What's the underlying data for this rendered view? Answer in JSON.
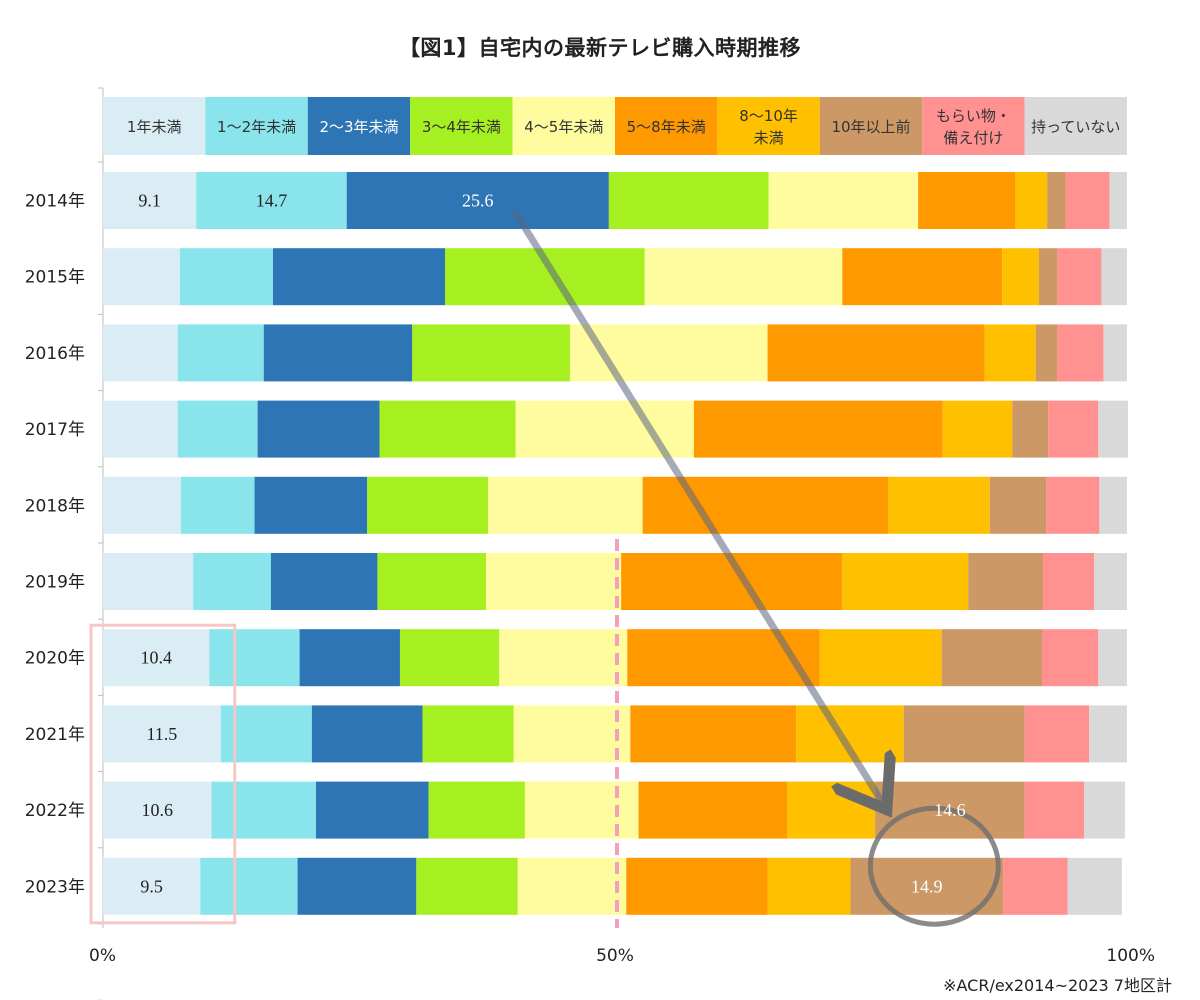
{
  "title": "【図1】自宅内の最新テレビ購入時期推移",
  "source_note": "※ACR/ex2014~2023 7地区計",
  "colors": {
    "1年未満": "#daedf4",
    "1～2年未満": "#89e4ec",
    "2～3年未満": "#2e75b6",
    "3～4年未満": "#a6ef21",
    "4～5年未満": "#fffc9f",
    "5～8年未満": "#ff9900",
    "8～10年未満": "#ffc000",
    "10年以上前": "#cc9966",
    "もらい物・備え付け": "#ff9191",
    "持っていない": "#d9d9d9"
  },
  "chart_data": {
    "type": "bar",
    "orientation": "horizontal",
    "stacked": true,
    "percent": true,
    "xlim": [
      0,
      100
    ],
    "x_tick_labels": [
      "0%",
      "50%",
      "100%"
    ],
    "x_tick_values": [
      0,
      50,
      100
    ],
    "categories": [
      "2014年",
      "2015年",
      "2016年",
      "2017年",
      "2018年",
      "2019年",
      "2020年",
      "2021年",
      "2022年",
      "2023年"
    ],
    "series": [
      {
        "name": "1年未満",
        "values": [
          9.1,
          7.5,
          7.3,
          7.3,
          7.6,
          8.8,
          10.4,
          11.5,
          10.6,
          9.5
        ]
      },
      {
        "name": "1～2年未満",
        "values": [
          14.7,
          9.1,
          8.4,
          7.8,
          7.2,
          7.6,
          8.8,
          8.9,
          10.2,
          9.5
        ]
      },
      {
        "name": "2～3年未満",
        "values": [
          25.6,
          16.8,
          14.5,
          11.9,
          11.0,
          10.4,
          9.8,
          10.8,
          11.0,
          11.6
        ]
      },
      {
        "name": "3～4年未満",
        "values": [
          15.6,
          19.5,
          15.4,
          13.3,
          11.8,
          10.6,
          9.7,
          8.9,
          9.4,
          9.9
        ]
      },
      {
        "name": "4～5年未満",
        "values": [
          14.6,
          19.3,
          19.3,
          17.4,
          15.1,
          13.2,
          12.5,
          11.4,
          11.1,
          10.6
        ]
      },
      {
        "name": "5～8年未満",
        "values": [
          9.5,
          15.6,
          21.2,
          24.3,
          24.0,
          21.6,
          18.8,
          16.2,
          14.5,
          13.8
        ]
      },
      {
        "name": "8～10年未満",
        "values": [
          3.1,
          3.6,
          5.0,
          6.8,
          9.9,
          12.3,
          11.9,
          10.5,
          8.6,
          8.1
        ]
      },
      {
        "name": "10年以上前",
        "values": [
          1.8,
          1.8,
          2.1,
          3.5,
          5.5,
          7.3,
          9.8,
          11.8,
          14.6,
          14.9
        ]
      },
      {
        "name": "もらい物・備え付け",
        "values": [
          4.3,
          4.3,
          4.5,
          4.9,
          5.2,
          5.0,
          5.5,
          6.3,
          5.8,
          6.3
        ]
      },
      {
        "name": "持っていない",
        "values": [
          1.7,
          2.5,
          2.3,
          2.9,
          2.7,
          3.2,
          2.8,
          3.7,
          4.0,
          5.3
        ]
      }
    ],
    "data_labels": [
      {
        "category": "2014年",
        "series": "1年未満",
        "text": "9.1"
      },
      {
        "category": "2014年",
        "series": "1～2年未満",
        "text": "14.7"
      },
      {
        "category": "2014年",
        "series": "2～3年未満",
        "text": "25.6"
      },
      {
        "category": "2020年",
        "series": "1年未満",
        "text": "10.4"
      },
      {
        "category": "2021年",
        "series": "1年未満",
        "text": "11.5"
      },
      {
        "category": "2022年",
        "series": "1年未満",
        "text": "10.6"
      },
      {
        "category": "2022年",
        "series": "10年以上前",
        "text": "14.6"
      },
      {
        "category": "2023年",
        "series": "1年未満",
        "text": "9.5"
      },
      {
        "category": "2023年",
        "series": "10年以上前",
        "text": "14.9"
      }
    ],
    "legend": {
      "placement": "top",
      "items": [
        {
          "series": "1年未満",
          "lines": [
            "1年未満"
          ]
        },
        {
          "series": "1～2年未満",
          "lines": [
            "1～2年未満"
          ]
        },
        {
          "series": "2～3年未満",
          "lines": [
            "2～3年未満"
          ]
        },
        {
          "series": "3～4年未満",
          "lines": [
            "3～4年未満"
          ]
        },
        {
          "series": "4～5年未満",
          "lines": [
            "4～5年未満"
          ]
        },
        {
          "series": "5～8年未満",
          "lines": [
            "5～8年未満"
          ]
        },
        {
          "series": "8～10年未満",
          "lines": [
            "8～10年",
            "未満"
          ]
        },
        {
          "series": "10年以上前",
          "lines": [
            "10年以上前"
          ]
        },
        {
          "series": "もらい物・備え付け",
          "lines": [
            "もらい物・",
            "備え付け"
          ]
        },
        {
          "series": "持っていない",
          "lines": [
            "持っていない"
          ]
        }
      ]
    },
    "annotations": {
      "reference_line_value": 50,
      "highlight_series": "1年未満",
      "highlight_categories": [
        "2020年",
        "2021年",
        "2022年",
        "2023年"
      ],
      "arrow_from": {
        "category": "2014年",
        "series": "2～3年未満"
      },
      "arrow_to": {
        "category": "2022年",
        "series": "10年以上前"
      },
      "circle_around": {
        "categories": [
          "2022年",
          "2023年"
        ],
        "series": "10年以上前"
      }
    }
  }
}
